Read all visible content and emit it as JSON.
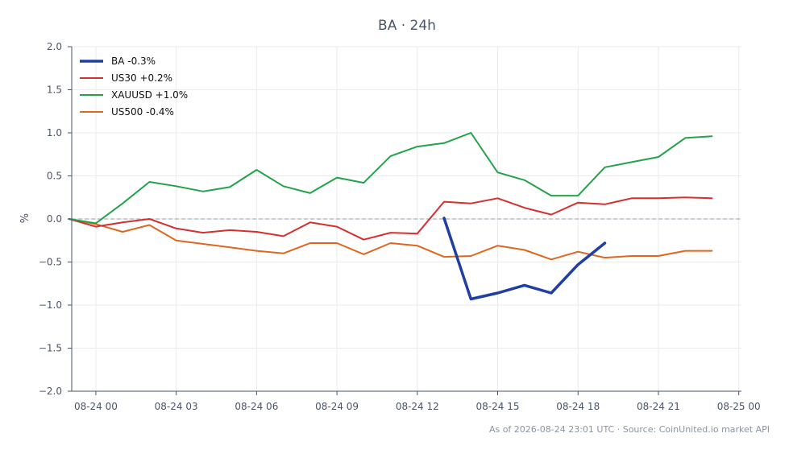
{
  "footer": "As of 2026-08-24 23:01 UTC · Source: CoinUnited.io market API",
  "chart_data": {
    "type": "line",
    "title": "BA · 24h",
    "xlabel": "",
    "ylabel": "%",
    "ylim": [
      -2.0,
      2.0
    ],
    "yticks": [
      2.0,
      1.5,
      1.0,
      0.5,
      0.0,
      -0.5,
      -1.0,
      -1.5,
      -2.0
    ],
    "ytick_labels": [
      "2.0",
      "1.5",
      "1.0",
      "0.5",
      "0.0",
      "−0.5",
      "−1.0",
      "−1.5",
      "−2.0"
    ],
    "xlim": [
      -0.9,
      24.1
    ],
    "xticks": [
      0,
      3,
      6,
      9,
      12,
      15,
      18,
      21,
      24
    ],
    "xtick_labels": [
      "08-24 00",
      "08-24 03",
      "08-24 06",
      "08-24 09",
      "08-24 12",
      "08-24 15",
      "08-24 18",
      "08-24 21",
      "08-25 00"
    ],
    "x_unit": "hours after 08-24 00:00",
    "baseline": 0.0,
    "grid": true,
    "legend_position": "top-left",
    "series": [
      {
        "name": "BA -0.3%",
        "color": "#1f3fa3",
        "width": 3.5,
        "x": [
          13,
          14,
          15,
          16,
          17,
          18,
          19
        ],
        "values": [
          0.01,
          -0.93,
          -0.86,
          -0.77,
          -0.86,
          -0.53,
          -0.28
        ]
      },
      {
        "name": "US30 +0.2%",
        "color": "#d62f2f",
        "width": 2,
        "x": [
          -1,
          0,
          1,
          2,
          3,
          4,
          5,
          6,
          7,
          8,
          9,
          10,
          11,
          12,
          13,
          14,
          15,
          16,
          17,
          18,
          19,
          20,
          21,
          22,
          23
        ],
        "values": [
          0.0,
          -0.09,
          -0.04,
          0.0,
          -0.11,
          -0.16,
          -0.13,
          -0.15,
          -0.2,
          -0.04,
          -0.09,
          -0.24,
          -0.16,
          -0.17,
          0.2,
          0.18,
          0.24,
          0.13,
          0.05,
          0.19,
          0.17,
          0.24,
          0.24,
          0.25,
          0.24
        ]
      },
      {
        "name": "XAUUSD +1.0%",
        "color": "#22a34a",
        "width": 2,
        "x": [
          -1,
          0,
          1,
          2,
          3,
          4,
          5,
          6,
          7,
          8,
          9,
          10,
          11,
          12,
          13,
          14,
          15,
          16,
          17,
          18,
          19,
          20,
          21,
          22,
          23
        ],
        "values": [
          0.0,
          -0.05,
          0.18,
          0.43,
          0.38,
          0.32,
          0.37,
          0.57,
          0.38,
          0.3,
          0.48,
          0.42,
          0.73,
          0.84,
          0.88,
          1.0,
          0.54,
          0.45,
          0.27,
          0.27,
          0.6,
          0.66,
          0.72,
          0.94,
          0.96
        ]
      },
      {
        "name": "US500 -0.4%",
        "color": "#e0651e",
        "width": 2,
        "x": [
          -1,
          0,
          1,
          2,
          3,
          4,
          5,
          6,
          7,
          8,
          9,
          10,
          11,
          12,
          13,
          14,
          15,
          16,
          17,
          18,
          19,
          20,
          21,
          22,
          23
        ],
        "values": [
          0.0,
          -0.06,
          -0.15,
          -0.07,
          -0.25,
          -0.29,
          -0.33,
          -0.37,
          -0.4,
          -0.28,
          -0.28,
          -0.41,
          -0.28,
          -0.31,
          -0.44,
          -0.43,
          -0.31,
          -0.36,
          -0.47,
          -0.38,
          -0.45,
          -0.43,
          -0.43,
          -0.37,
          -0.37
        ]
      }
    ]
  }
}
